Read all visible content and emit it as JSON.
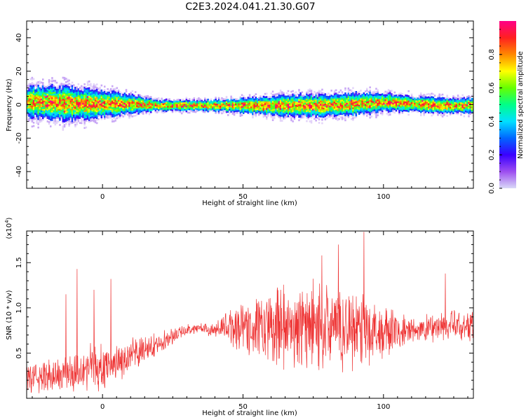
{
  "title": "C2E3.2024.041.21.30.G07",
  "colors": {
    "snr_line": "#ee3333",
    "colorbar_stops": [
      "#d9d9f7",
      "#9d4ef0",
      "#3a00ff",
      "#0066ff",
      "#00e0ff",
      "#00ff88",
      "#66ff00",
      "#ffff00",
      "#ff8800",
      "#ff2020",
      "#ff0088"
    ]
  },
  "chart_data": [
    {
      "type": "heatmap",
      "xlabel": "Height of straight line (km)",
      "ylabel": "Frequency (Hz)",
      "xlim": [
        -27,
        132
      ],
      "ylim": [
        -50,
        50
      ],
      "xticks": [
        0,
        50,
        100
      ],
      "xtick_labels": [
        "0",
        "50",
        "100"
      ],
      "yticks": [
        -40,
        -20,
        0,
        20,
        40
      ],
      "ytick_labels": [
        "-40",
        "-20",
        "0",
        "20",
        "40"
      ],
      "colorbar": {
        "label": "Normalized spectral amplitude",
        "range": [
          0,
          1
        ],
        "ticks": [
          0.0,
          0.2,
          0.4,
          0.6,
          0.8
        ],
        "tick_labels": [
          "0.0",
          "0.2",
          "0.4",
          "0.6",
          "0.8"
        ]
      },
      "band_profile": {
        "x": [
          -27,
          -20,
          -10,
          0,
          10,
          20,
          30,
          40,
          50,
          60,
          70,
          80,
          90,
          100,
          110,
          120,
          132
        ],
        "center_hz": [
          2,
          2,
          1,
          1,
          1,
          0,
          0,
          0,
          0,
          0,
          0,
          0,
          1,
          2,
          1,
          0,
          0
        ],
        "halfwidth_hz": [
          8,
          9,
          9,
          7,
          5,
          3,
          3,
          3,
          4,
          5,
          6,
          6,
          6,
          5,
          4,
          4,
          4
        ]
      }
    },
    {
      "type": "line",
      "xlabel": "Height of straight line (km)",
      "ylabel": "SNR (10 * v/v)",
      "y_multiplier_label": "(x10",
      "y_multiplier_exp": "4",
      "xlim": [
        -27,
        132
      ],
      "ylim": [
        0,
        18500
      ],
      "xticks": [
        0,
        50,
        100
      ],
      "xtick_labels": [
        "0",
        "50",
        "100"
      ],
      "yticks": [
        5000,
        10000,
        15000
      ],
      "ytick_labels": [
        "0.5",
        "1.0",
        "1.5"
      ],
      "envelope": {
        "x": [
          -27,
          -20,
          -12,
          -5,
          0,
          5,
          10,
          15,
          20,
          25,
          30,
          35,
          40,
          45,
          50,
          55,
          60,
          65,
          70,
          75,
          80,
          85,
          90,
          95,
          100,
          105,
          110,
          115,
          120,
          125,
          132
        ],
        "mean": [
          2200,
          2400,
          2800,
          3600,
          3300,
          4000,
          4600,
          5300,
          6100,
          6900,
          7600,
          7800,
          7500,
          7900,
          8100,
          7700,
          7600,
          8000,
          7700,
          8200,
          8000,
          7600,
          8000,
          7800,
          7100,
          7300,
          7400,
          7700,
          8000,
          7900,
          8000
        ],
        "spread": [
          2000,
          2200,
          2600,
          3000,
          2800,
          2600,
          2300,
          1800,
          1400,
          1000,
          700,
          700,
          900,
          2500,
          3500,
          4200,
          4800,
          5200,
          5400,
          5600,
          5600,
          5400,
          5200,
          4800,
          4000,
          2600,
          1800,
          1800,
          2000,
          2200,
          2200
        ]
      },
      "peaks": {
        "x": [
          -13,
          -9,
          -3,
          3,
          78,
          84,
          93,
          122
        ],
        "y": [
          11500,
          14300,
          12000,
          13200,
          15800,
          17000,
          18400,
          13800
        ]
      }
    }
  ]
}
